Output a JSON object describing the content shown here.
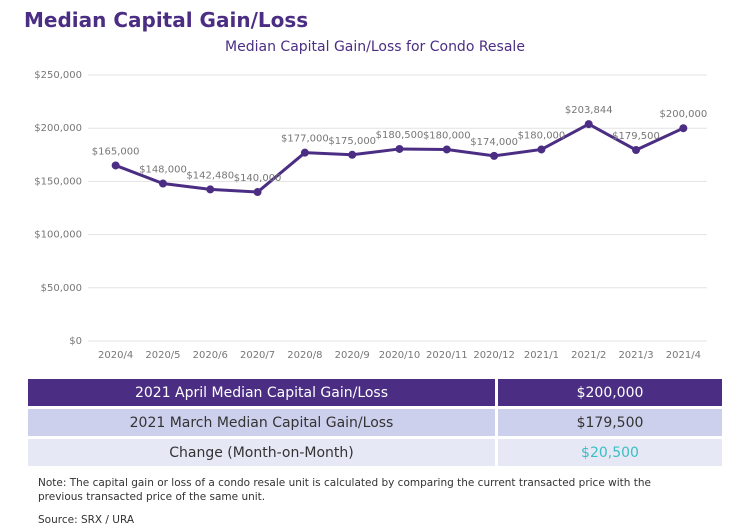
{
  "header": {
    "title": "Median Capital Gain/Loss"
  },
  "chart_data": {
    "type": "line",
    "title": "Median Capital Gain/Loss for Condo Resale",
    "categories": [
      "2020/4",
      "2020/5",
      "2020/6",
      "2020/7",
      "2020/8",
      "2020/9",
      "2020/10",
      "2020/11",
      "2020/12",
      "2021/1",
      "2021/2",
      "2021/3",
      "2021/4"
    ],
    "values": [
      165000,
      148000,
      142480,
      140000,
      177000,
      175000,
      180500,
      180000,
      174000,
      180000,
      203844,
      179500,
      200000
    ],
    "value_labels": [
      "$165,000",
      "$148,000",
      "$142,480",
      "$140,000",
      "$177,000",
      "$175,000",
      "$180,500",
      "$180,000",
      "$174,000",
      "$180,000",
      "$203,844",
      "$179,500",
      "$200,000"
    ],
    "color": "#4b2e83",
    "ylim": [
      0,
      250000
    ],
    "yticks": [
      {
        "value": 0,
        "label": "$0"
      },
      {
        "value": 50000,
        "label": "$50,000"
      },
      {
        "value": 100000,
        "label": "$100,000"
      },
      {
        "value": 150000,
        "label": "$150,000"
      },
      {
        "value": 200000,
        "label": "$200,000"
      },
      {
        "value": 250000,
        "label": "$250,000"
      }
    ],
    "grid": true
  },
  "table": {
    "rows": [
      [
        "2021 April Median Capital Gain/Loss",
        "$200,000"
      ],
      [
        "2021 March Median Capital Gain/Loss",
        "$179,500"
      ],
      [
        "Change (Month-on-Month)",
        "$20,500"
      ]
    ]
  },
  "note": "Note: The capital gain or loss of a condo resale unit is calculated by comparing the current transacted price with the previous transacted price of the same unit.",
  "source": "Source: SRX / URA"
}
